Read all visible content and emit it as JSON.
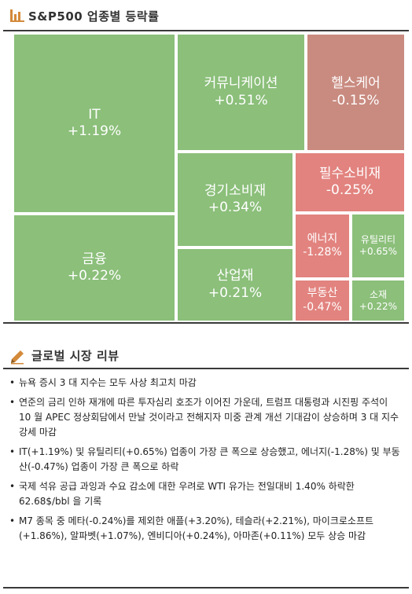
{
  "header": {
    "title": "S&P500 업종별 등락률",
    "icon": "bar-chart-icon",
    "icon_color": "#d38a3a"
  },
  "review": {
    "title": "글로벌 시장 리뷰",
    "icon": "pencil-icon",
    "items": [
      "뉴욕 증시 3 대 지수는 모두 사상 최고치 마감",
      "연준의 금리 인하 재개에 따른 투자심리 호조가 이어진 가운데, 트럼프 대통령과 시진핑 주석이 10 월 APEC 정상회담에서 만날 것이라고 전해지자 미중 관계 개선 기대감이 상승하며 3 대 지수 강세 마감",
      "IT(+1.19%) 및 유틸리티(+0.65%) 업종이 가장 큰 폭으로 상승했고, 에너지(-1.28%) 및 부동산(-0.47%) 업종이 가장 큰 폭으로 하락",
      "국제 석유 공급 과잉과 수요 감소에 대한 우려로 WTI 유가는 전일대비 1.40% 하락한 62.68$/bbl 을 기록",
      "M7 종목 중 메타(-0.24%)를 제외한 애플(+3.20%), 테슬라(+2.21%), 마이크로소프트(+1.86%), 알파벳(+1.07%), 엔비디아(+0.24%), 아마존(+0.11%) 모두 상승 마감"
    ]
  },
  "colors": {
    "up": "#8bbf7a",
    "down": "#e2837f",
    "down_soft": "#c98b80"
  },
  "chart_data": {
    "type": "treemap",
    "title": "S&P500 업종별 등락률",
    "sectors": [
      {
        "name": "IT",
        "change": 1.19,
        "label": "+1.19%"
      },
      {
        "name": "금융",
        "change": 0.22,
        "label": "+0.22%"
      },
      {
        "name": "커뮤니케이션",
        "change": 0.51,
        "label": "+0.51%"
      },
      {
        "name": "헬스케어",
        "change": -0.15,
        "label": "-0.15%"
      },
      {
        "name": "경기소비재",
        "change": 0.34,
        "label": "+0.34%"
      },
      {
        "name": "필수소비재",
        "change": -0.25,
        "label": "-0.25%"
      },
      {
        "name": "산업재",
        "change": 0.21,
        "label": "+0.21%"
      },
      {
        "name": "에너지",
        "change": -1.28,
        "label": "-1.28%"
      },
      {
        "name": "유틸리티",
        "change": 0.65,
        "label": "+0.65%"
      },
      {
        "name": "부동산",
        "change": -0.47,
        "label": "-0.47%"
      },
      {
        "name": "소재",
        "change": 0.22,
        "label": "+0.22%"
      }
    ]
  }
}
